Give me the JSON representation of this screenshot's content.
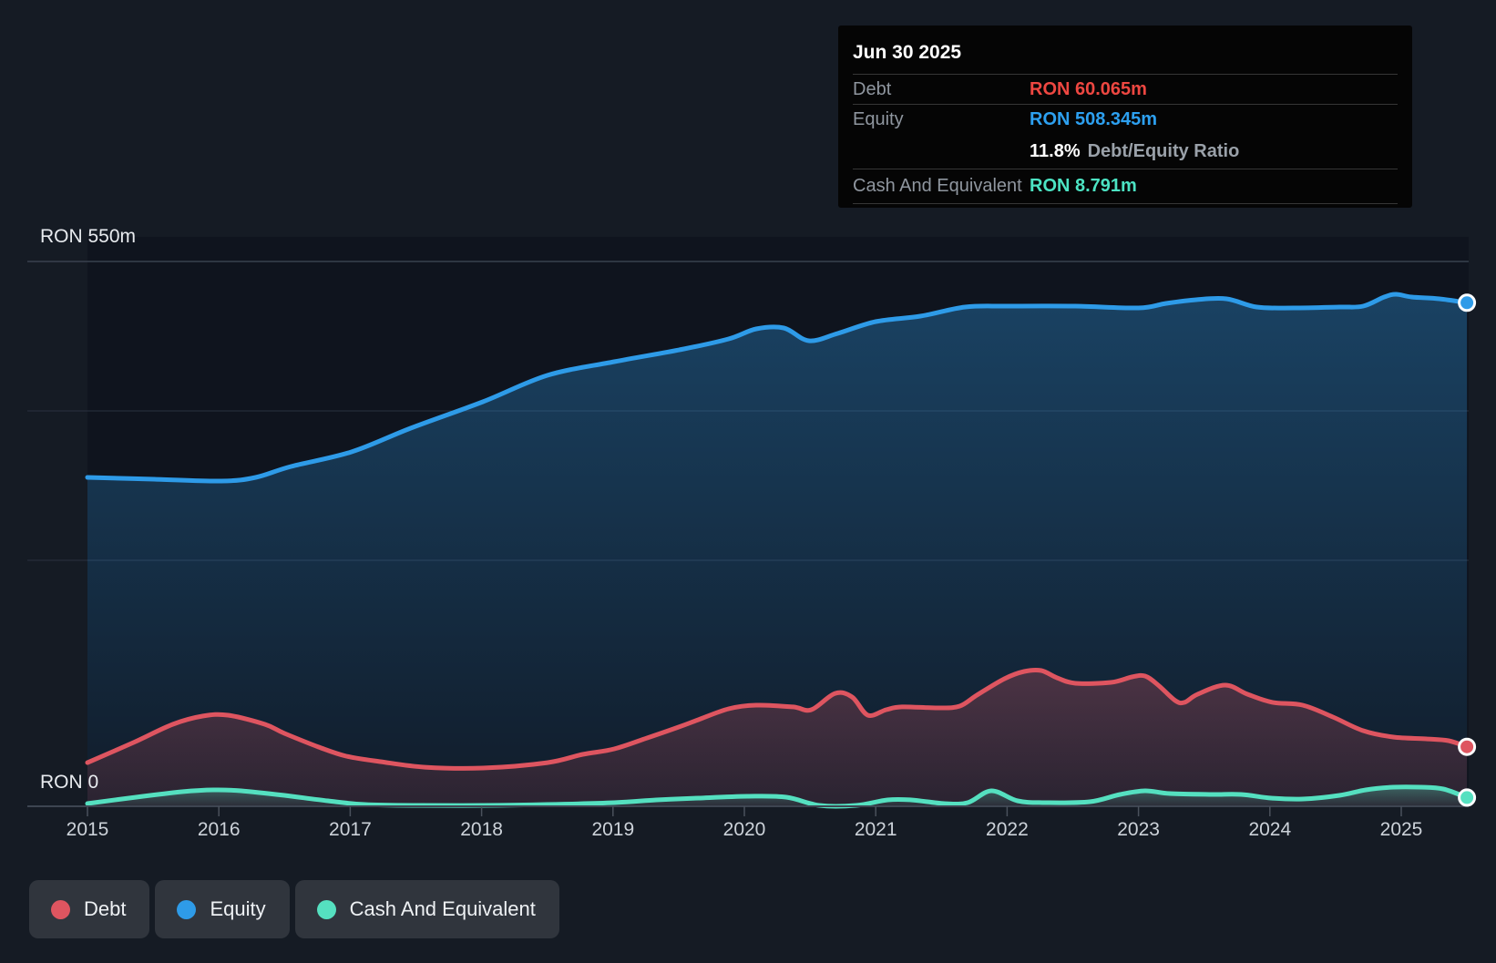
{
  "tooltip": {
    "date": "Jun 30 2025",
    "debt": {
      "label": "Debt",
      "value": "RON 60.065m",
      "color": "#ee4741"
    },
    "equity": {
      "label": "Equity",
      "value": "RON 508.345m",
      "color": "#2da0f0"
    },
    "ratio": {
      "value": "11.8%",
      "label": "Debt/Equity Ratio"
    },
    "cash": {
      "label": "Cash And Equivalent",
      "value": "RON 8.791m",
      "color": "#4ce3c3"
    }
  },
  "chart_data": {
    "type": "area",
    "x_axis": {
      "ticks": [
        2015,
        2016,
        2017,
        2018,
        2019,
        2020,
        2021,
        2022,
        2023,
        2024,
        2025
      ],
      "end": 2025.5
    },
    "y_axis": {
      "top_label": "RON 550m",
      "bottom_label": "RON 0",
      "min": 0,
      "max": 550,
      "unit": "RON millions"
    },
    "grid": "horizontal",
    "legend_position": "bottom-left",
    "series": [
      {
        "name": "Debt",
        "color": "#de5560",
        "end_value_label": "RON 60.065m",
        "points": [
          [
            2015.0,
            44.1
          ],
          [
            2015.35,
            64.4
          ],
          [
            2015.65,
            82.8
          ],
          [
            2015.88,
            91.1
          ],
          [
            2016.07,
            92.0
          ],
          [
            2016.35,
            82.8
          ],
          [
            2016.5,
            73.6
          ],
          [
            2016.76,
            59.8
          ],
          [
            2016.97,
            50.6
          ],
          [
            2017.23,
            45.1
          ],
          [
            2017.57,
            39.5
          ],
          [
            2018.01,
            38.6
          ],
          [
            2018.5,
            44.1
          ],
          [
            2018.77,
            52.4
          ],
          [
            2019.01,
            57.9
          ],
          [
            2019.26,
            69.0
          ],
          [
            2019.5,
            80.0
          ],
          [
            2019.65,
            87.4
          ],
          [
            2019.88,
            98.4
          ],
          [
            2020.09,
            102.1
          ],
          [
            2020.37,
            100.3
          ],
          [
            2020.51,
            97.5
          ],
          [
            2020.69,
            114.0
          ],
          [
            2020.82,
            110.4
          ],
          [
            2020.94,
            92.0
          ],
          [
            2021.08,
            97.5
          ],
          [
            2021.2,
            100.3
          ],
          [
            2021.48,
            99.3
          ],
          [
            2021.64,
            101.2
          ],
          [
            2021.77,
            112.2
          ],
          [
            2021.98,
            128.8
          ],
          [
            2022.13,
            136.1
          ],
          [
            2022.26,
            137.0
          ],
          [
            2022.38,
            129.7
          ],
          [
            2022.52,
            124.2
          ],
          [
            2022.79,
            125.1
          ],
          [
            2022.95,
            130.6
          ],
          [
            2023.05,
            131.5
          ],
          [
            2023.15,
            122.3
          ],
          [
            2023.28,
            106.7
          ],
          [
            2023.35,
            104.9
          ],
          [
            2023.45,
            113.1
          ],
          [
            2023.66,
            122.3
          ],
          [
            2023.83,
            113.1
          ],
          [
            2024.02,
            104.9
          ],
          [
            2024.25,
            102.1
          ],
          [
            2024.48,
            90.1
          ],
          [
            2024.71,
            76.3
          ],
          [
            2024.94,
            69.9
          ],
          [
            2025.19,
            68.1
          ],
          [
            2025.36,
            66.2
          ],
          [
            2025.5,
            60.065
          ]
        ]
      },
      {
        "name": "Equity",
        "color": "#2e9be8",
        "end_value_label": "RON 508.345m",
        "points": [
          [
            2015.0,
            332.0
          ],
          [
            2015.51,
            330.2
          ],
          [
            2016.02,
            328.3
          ],
          [
            2016.28,
            332.0
          ],
          [
            2016.55,
            343.1
          ],
          [
            2017.01,
            357.8
          ],
          [
            2017.46,
            381.7
          ],
          [
            2018.01,
            408.4
          ],
          [
            2018.5,
            435.0
          ],
          [
            2019.01,
            448.8
          ],
          [
            2019.54,
            461.7
          ],
          [
            2019.88,
            471.8
          ],
          [
            2020.09,
            481.9
          ],
          [
            2020.3,
            482.9
          ],
          [
            2020.49,
            470.0
          ],
          [
            2020.71,
            477.3
          ],
          [
            2021.0,
            489.3
          ],
          [
            2021.34,
            494.8
          ],
          [
            2021.68,
            504.0
          ],
          [
            2022.0,
            504.9
          ],
          [
            2022.52,
            504.9
          ],
          [
            2023.0,
            503.1
          ],
          [
            2023.21,
            507.7
          ],
          [
            2023.44,
            511.4
          ],
          [
            2023.67,
            512.3
          ],
          [
            2023.9,
            504.0
          ],
          [
            2024.18,
            503.1
          ],
          [
            2024.53,
            504.0
          ],
          [
            2024.71,
            504.9
          ],
          [
            2024.87,
            514.1
          ],
          [
            2024.96,
            516.9
          ],
          [
            2025.08,
            514.1
          ],
          [
            2025.29,
            512.3
          ],
          [
            2025.5,
            508.345
          ]
        ]
      },
      {
        "name": "Cash And Equivalent",
        "color": "#55e0c0",
        "end_value_label": "RON 8.791m",
        "points": [
          [
            2015.0,
            2.8
          ],
          [
            2015.37,
            9.2
          ],
          [
            2015.72,
            14.7
          ],
          [
            2015.96,
            16.6
          ],
          [
            2016.17,
            15.6
          ],
          [
            2016.5,
            11.0
          ],
          [
            2016.83,
            5.5
          ],
          [
            2017.11,
            1.8
          ],
          [
            2017.52,
            0.9
          ],
          [
            2018.01,
            0.9
          ],
          [
            2018.5,
            1.8
          ],
          [
            2019.01,
            3.7
          ],
          [
            2019.33,
            6.4
          ],
          [
            2019.65,
            8.3
          ],
          [
            2020.02,
            10.1
          ],
          [
            2020.32,
            9.2
          ],
          [
            2020.57,
            0.9
          ],
          [
            2020.85,
            0.9
          ],
          [
            2021.09,
            6.4
          ],
          [
            2021.27,
            6.4
          ],
          [
            2021.52,
            2.8
          ],
          [
            2021.7,
            3.7
          ],
          [
            2021.88,
            15.6
          ],
          [
            2022.08,
            5.5
          ],
          [
            2022.29,
            3.7
          ],
          [
            2022.63,
            4.6
          ],
          [
            2022.86,
            12.0
          ],
          [
            2023.05,
            15.6
          ],
          [
            2023.24,
            12.9
          ],
          [
            2023.56,
            12.0
          ],
          [
            2023.78,
            12.0
          ],
          [
            2024.01,
            8.3
          ],
          [
            2024.25,
            7.4
          ],
          [
            2024.53,
            11.0
          ],
          [
            2024.73,
            16.6
          ],
          [
            2024.94,
            19.3
          ],
          [
            2025.15,
            19.3
          ],
          [
            2025.32,
            17.5
          ],
          [
            2025.5,
            8.791
          ]
        ]
      }
    ]
  }
}
